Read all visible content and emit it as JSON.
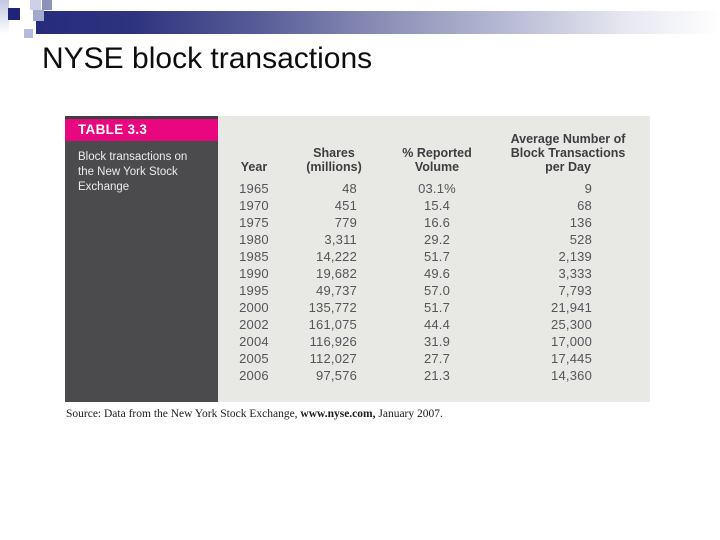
{
  "slide": {
    "title": "NYSE block transactions"
  },
  "table": {
    "label": "TABLE 3.3",
    "caption": "Block transactions on the New York Stock Exchange",
    "columns": [
      {
        "name": "year",
        "lines": [
          "Year"
        ]
      },
      {
        "name": "shares-millions",
        "lines": [
          "Shares",
          "(millions)"
        ]
      },
      {
        "name": "pct-reported-volume",
        "lines": [
          "% Reported",
          "Volume"
        ]
      },
      {
        "name": "avg-block-transactions-per-day",
        "lines": [
          "Average Number of",
          "Block Transactions",
          "per Day"
        ]
      }
    ],
    "rows": [
      [
        "1965",
        "48",
        "03.1%",
        "9"
      ],
      [
        "1970",
        "451",
        "15.4",
        "68"
      ],
      [
        "1975",
        "779",
        "16.6",
        "136"
      ],
      [
        "1980",
        "3,311",
        "29.2",
        "528"
      ],
      [
        "1985",
        "14,222",
        "51.7",
        "2,139"
      ],
      [
        "1990",
        "19,682",
        "49.6",
        "3,333"
      ],
      [
        "1995",
        "49,737",
        "57.0",
        "7,793"
      ],
      [
        "2000",
        "135,772",
        "51.7",
        "21,941"
      ],
      [
        "2002",
        "161,075",
        "44.4",
        "25,300"
      ],
      [
        "2004",
        "116,926",
        "31.9",
        "17,000"
      ],
      [
        "2005",
        "112,027",
        "27.7",
        "17,445"
      ],
      [
        "2006",
        "97,576",
        "21.3",
        "14,360"
      ]
    ]
  },
  "source_note": {
    "prefix": "Source: Data from the New York Stock Exchange, ",
    "emphasis": "www.nyse.com,",
    "suffix": " January 2007."
  },
  "colors": {
    "accent_pink": "#e8077e",
    "sidebar_gray": "#4b4b4d",
    "table_background": "#e8e8e5",
    "bar_navy": "#1f2478",
    "title_text": "#0d0d0d"
  }
}
